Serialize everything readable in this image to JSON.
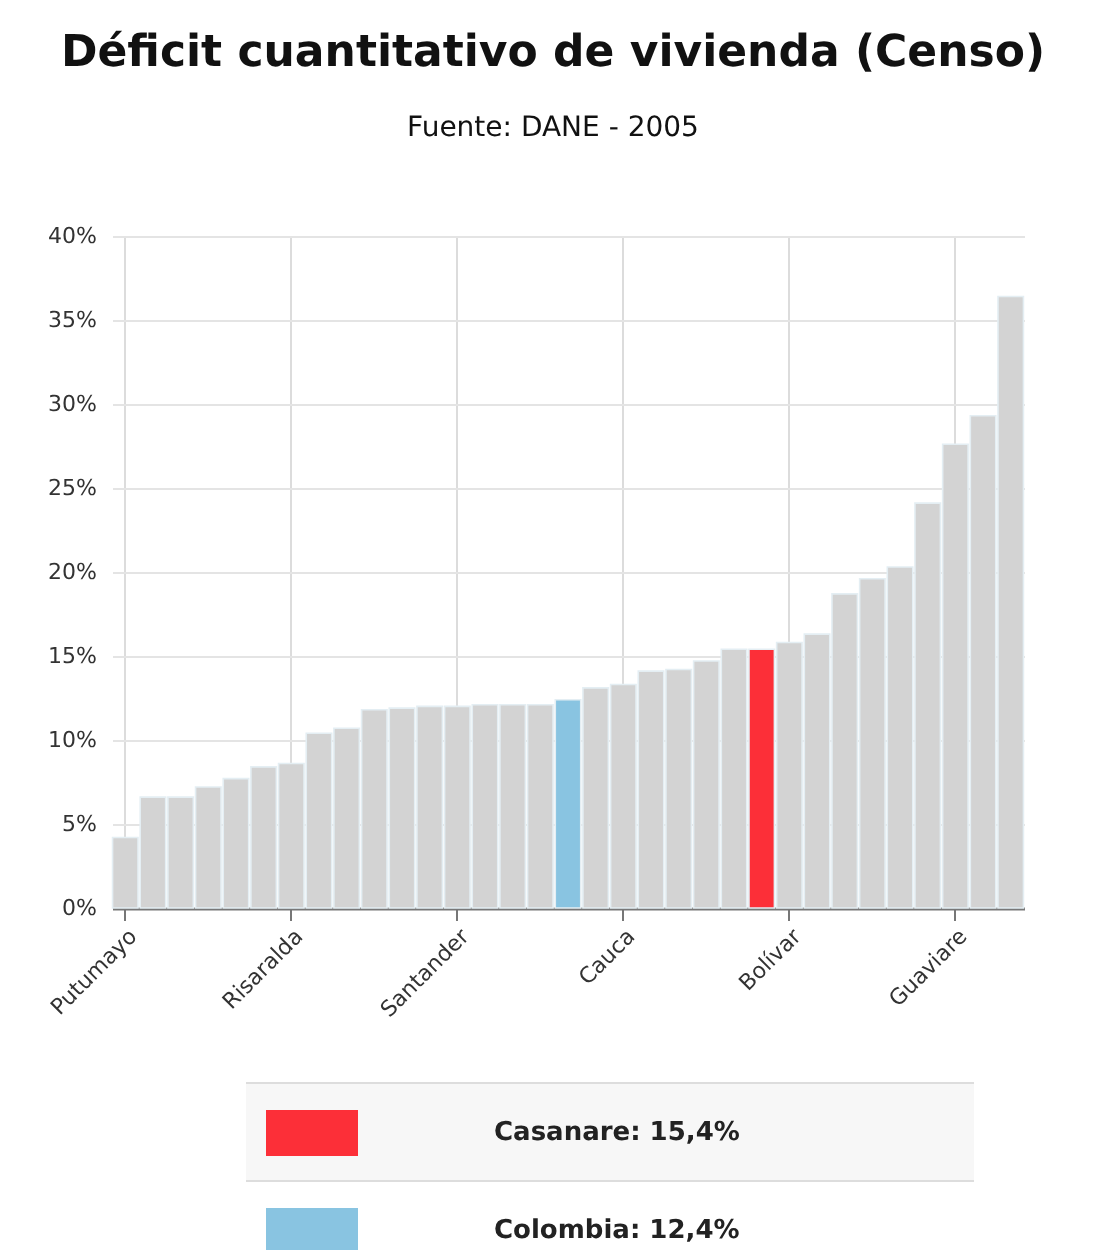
{
  "chart_data": {
    "type": "bar",
    "title": "Déficit cuantitativo de vivienda (Censo)",
    "subtitle": "Fuente: DANE - 2005",
    "categories": [
      "Putumayo",
      null,
      null,
      null,
      null,
      null,
      "Risaralda",
      null,
      null,
      null,
      null,
      null,
      "Santander",
      null,
      null,
      null,
      null,
      null,
      "Cauca",
      null,
      null,
      null,
      null,
      null,
      "Bolívar",
      null,
      null,
      null,
      null,
      null,
      "Guaviare",
      null,
      null
    ],
    "values": [
      4.2,
      6.6,
      6.6,
      7.2,
      7.7,
      8.4,
      8.6,
      10.4,
      10.7,
      11.8,
      11.9,
      12.0,
      12.0,
      12.1,
      12.1,
      12.1,
      12.4,
      13.1,
      13.3,
      14.1,
      14.2,
      14.7,
      15.4,
      15.4,
      15.8,
      16.3,
      18.7,
      19.6,
      20.3,
      24.1,
      27.6,
      29.3,
      36.4
    ],
    "colors": [
      "#d3d3d3",
      "#d3d3d3",
      "#d3d3d3",
      "#d3d3d3",
      "#d3d3d3",
      "#d3d3d3",
      "#d3d3d3",
      "#d3d3d3",
      "#d3d3d3",
      "#d3d3d3",
      "#d3d3d3",
      "#d3d3d3",
      "#d3d3d3",
      "#d3d3d3",
      "#d3d3d3",
      "#d3d3d3",
      "#89c4e1",
      "#d3d3d3",
      "#d3d3d3",
      "#d3d3d3",
      "#d3d3d3",
      "#d3d3d3",
      "#d3d3d3",
      "#fc2f38",
      "#d3d3d3",
      "#d3d3d3",
      "#d3d3d3",
      "#d3d3d3",
      "#d3d3d3",
      "#d3d3d3",
      "#d3d3d3",
      "#d3d3d3",
      "#d3d3d3"
    ],
    "ylim": [
      0,
      40
    ],
    "yticks": [
      {
        "value": 0,
        "label": "0%"
      },
      {
        "value": 5,
        "label": "5%"
      },
      {
        "value": 10,
        "label": "10%"
      },
      {
        "value": 15,
        "label": "15%"
      },
      {
        "value": 20,
        "label": "20%"
      },
      {
        "value": 25,
        "label": "25%"
      },
      {
        "value": 30,
        "label": "30%"
      },
      {
        "value": 35,
        "label": "35%"
      },
      {
        "value": 40,
        "label": "40%"
      }
    ],
    "grid": true,
    "annotations": [
      "Casanare: 15,4%",
      "Colombia: 12,4%"
    ]
  }
}
